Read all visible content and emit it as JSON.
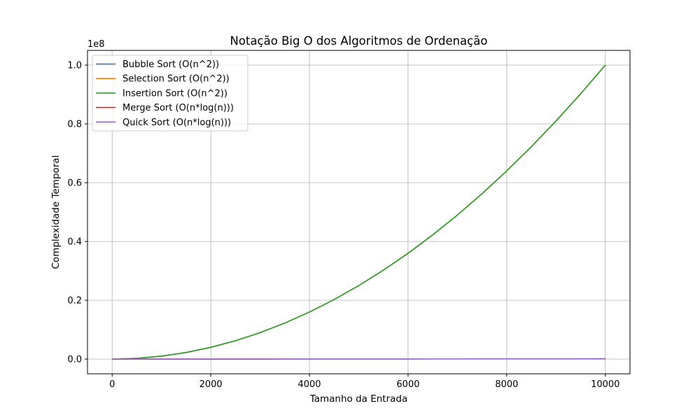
{
  "chart_data": {
    "type": "line",
    "title": "Notação Big O dos Algoritmos de Ordenação",
    "xlabel": "Tamanho da Entrada",
    "ylabel": "Complexidade Temporal",
    "y_offset_label": "1e8",
    "xlim": [
      -500,
      10500
    ],
    "ylim": [
      -5000000,
      105000000
    ],
    "x_ticks": [
      0,
      2000,
      4000,
      6000,
      8000,
      10000
    ],
    "x_tick_labels": [
      "0",
      "2000",
      "4000",
      "6000",
      "8000",
      "10000"
    ],
    "y_ticks": [
      0,
      20000000,
      40000000,
      60000000,
      80000000,
      100000000
    ],
    "y_tick_labels": [
      "0.0",
      "0.2",
      "0.4",
      "0.6",
      "0.8",
      "1.0"
    ],
    "grid": true,
    "legend_position": "top-left",
    "x": [
      1,
      500,
      1000,
      1500,
      2000,
      2500,
      3000,
      3500,
      4000,
      4500,
      5000,
      5500,
      6000,
      6500,
      7000,
      7500,
      8000,
      8500,
      9000,
      9500,
      10000
    ],
    "series": [
      {
        "name": "Bubble Sort (O(n^2))",
        "color": "#1f77b4",
        "values": [
          1,
          250000,
          1000000,
          2250000,
          4000000,
          6250000,
          9000000,
          12250000,
          16000000,
          20250000,
          25000000,
          30250000,
          36000000,
          42250000,
          49000000,
          56250000,
          64000000,
          72250000,
          81000000,
          90250000,
          100000000
        ]
      },
      {
        "name": "Selection Sort (O(n^2))",
        "color": "#ff7f0e",
        "values": [
          1,
          250000,
          1000000,
          2250000,
          4000000,
          6250000,
          9000000,
          12250000,
          16000000,
          20250000,
          25000000,
          30250000,
          36000000,
          42250000,
          49000000,
          56250000,
          64000000,
          72250000,
          81000000,
          90250000,
          100000000
        ]
      },
      {
        "name": "Insertion Sort (O(n^2))",
        "color": "#2ca02c",
        "values": [
          1,
          250000,
          1000000,
          2250000,
          4000000,
          6250000,
          9000000,
          12250000,
          16000000,
          20250000,
          25000000,
          30250000,
          36000000,
          42250000,
          49000000,
          56250000,
          64000000,
          72250000,
          81000000,
          90250000,
          100000000
        ]
      },
      {
        "name": "Merge Sort (O(n*log(n)))",
        "color": "#d62728",
        "values": [
          0,
          3107,
          6908,
          10970,
          15202,
          19560,
          24019,
          28563,
          33176,
          37850,
          42586,
          47375,
          52198,
          57069,
          61977,
          66919,
          71897,
          76915,
          81949,
          87009,
          92103
        ]
      },
      {
        "name": "Quick Sort (O(n*log(n)))",
        "color": "#9467bd",
        "values": [
          0,
          3107,
          6908,
          10970,
          15202,
          19560,
          24019,
          28563,
          33176,
          37850,
          42586,
          47375,
          52198,
          57069,
          61977,
          66919,
          71897,
          76915,
          81949,
          87009,
          92103
        ]
      }
    ]
  }
}
